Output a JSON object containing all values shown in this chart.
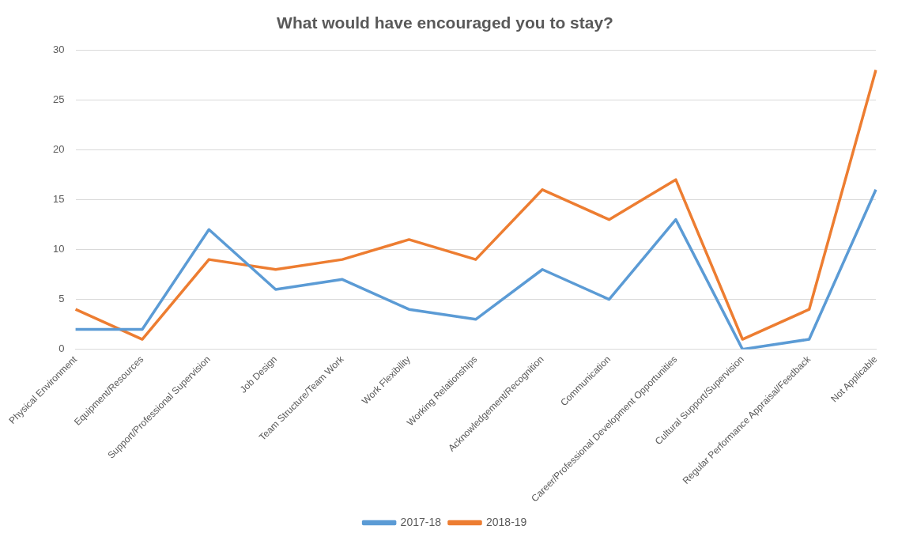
{
  "chart_data": {
    "type": "line",
    "title": "What would have encouraged you to stay?",
    "categories": [
      "Physical Environment",
      "Equipment/Resources",
      "Support/Professional Supervision",
      "Job Design",
      "Team Structure/Team Work",
      "Work Flexibility",
      "Working Relationships",
      "Acknowledgement/Recognition",
      "Communication",
      "Career/Professional Development Opportunities",
      "Cultural Support/Supervision",
      "Regular Performance Appraisal/Feedback",
      "Not Applicable"
    ],
    "series": [
      {
        "name": "2017-18",
        "color": "#5b9bd5",
        "values": [
          2,
          2,
          12,
          6,
          7,
          4,
          3,
          8,
          5,
          13,
          0,
          1,
          16
        ]
      },
      {
        "name": "2018-19",
        "color": "#ed7d31",
        "values": [
          4,
          1,
          9,
          8,
          9,
          11,
          9,
          16,
          13,
          17,
          1,
          4,
          28
        ]
      }
    ],
    "ylim": [
      0,
      30
    ],
    "yticks": [
      0,
      5,
      10,
      15,
      20,
      25,
      30
    ],
    "grid": "y",
    "legend": "bottom",
    "marker": "none",
    "line_style": "solid"
  }
}
